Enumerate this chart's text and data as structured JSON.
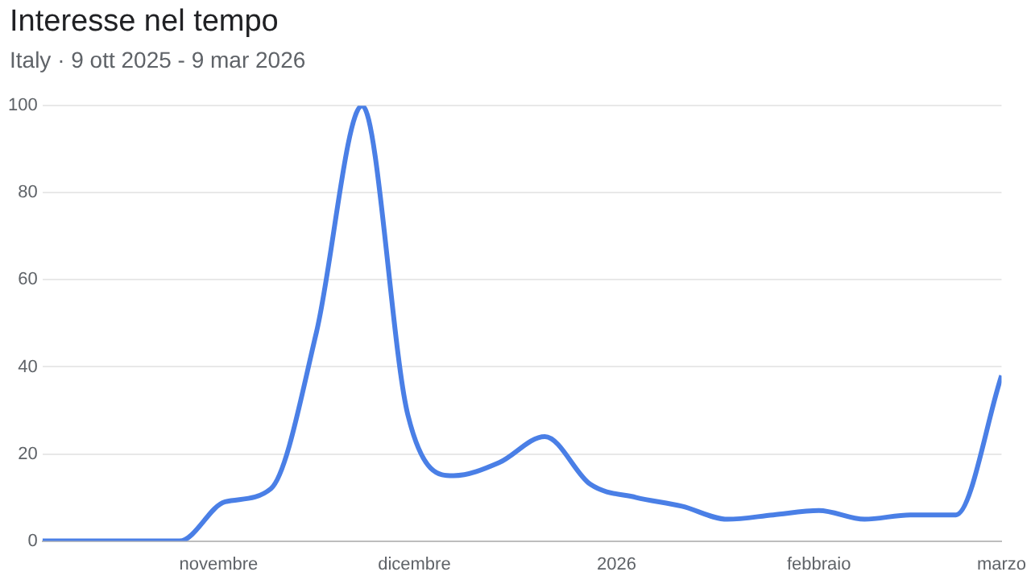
{
  "chart_data": {
    "type": "line",
    "title": "Interesse nel tempo",
    "subtitle": "Italy · 9 ott 2025 - 9 mar 2026",
    "x": [
      "2025-10-05",
      "2025-10-12",
      "2025-10-19",
      "2025-10-26",
      "2025-11-02",
      "2025-11-09",
      "2025-11-16",
      "2025-11-23",
      "2025-11-30",
      "2025-12-07",
      "2025-12-14",
      "2025-12-21",
      "2025-12-28",
      "2026-01-04",
      "2026-01-11",
      "2026-01-18",
      "2026-01-25",
      "2026-02-01",
      "2026-02-08",
      "2026-02-15",
      "2026-02-22",
      "2026-03-01"
    ],
    "series": [
      {
        "color": "#4a7fe6",
        "values": [
          0,
          0,
          0,
          0,
          9,
          12,
          48,
          100,
          29,
          15,
          18,
          24,
          13,
          10,
          8,
          5,
          6,
          7,
          5,
          6,
          6,
          38
        ]
      }
    ],
    "xlim": [
      "2025-10-05",
      "2026-03-01"
    ],
    "xticks": [
      {
        "value": "2025-11-01",
        "label": "novembre"
      },
      {
        "value": "2025-12-01",
        "label": "dicembre"
      },
      {
        "value": "2026-01-01",
        "label": "2026"
      },
      {
        "value": "2026-02-01",
        "label": "febbraio"
      },
      {
        "value": "2026-03-01",
        "label": "marzo"
      }
    ],
    "ylim": [
      0,
      100
    ],
    "yticks": [
      0,
      20,
      40,
      60,
      80,
      100
    ],
    "grid": "y",
    "legend": false,
    "marker": "none",
    "line_style": "solid"
  }
}
